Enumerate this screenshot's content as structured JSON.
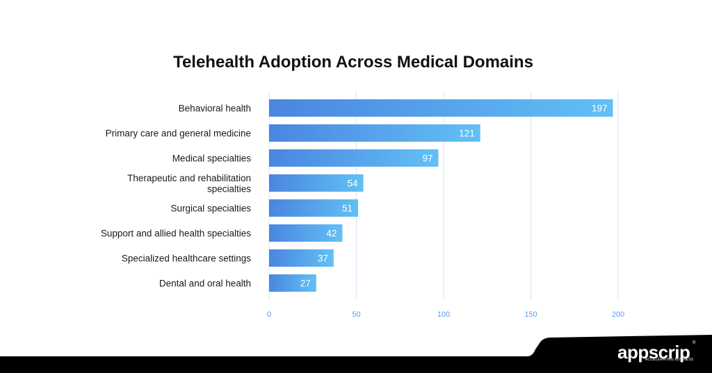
{
  "chart_data": {
    "type": "bar",
    "orientation": "horizontal",
    "title": "Telehealth Adoption Across Medical Domains",
    "categories": [
      "Behavioral health",
      "Primary care and general medicine",
      "Medical specialties",
      "Therapeutic and rehabilitation specialties",
      "Surgical specialties",
      "Support and allied health specialties",
      "Specialized healthcare settings",
      "Dental and oral health"
    ],
    "values": [
      197,
      121,
      97,
      54,
      51,
      42,
      37,
      27
    ],
    "xlim": [
      0,
      200
    ],
    "xticks": [
      0,
      50,
      100,
      150,
      200
    ],
    "grid": "vertical",
    "data_labels": "inside-end",
    "colors": {
      "bar_start": "#4a86e0",
      "bar_end": "#62c0f5",
      "grid": "#d4e6fb",
      "tick": "#5b9be8"
    }
  },
  "branding": {
    "name": "appscrip",
    "tagline": "ACCELERATING BUSINESS",
    "reg_mark": "®",
    "band_color": "#000000"
  }
}
